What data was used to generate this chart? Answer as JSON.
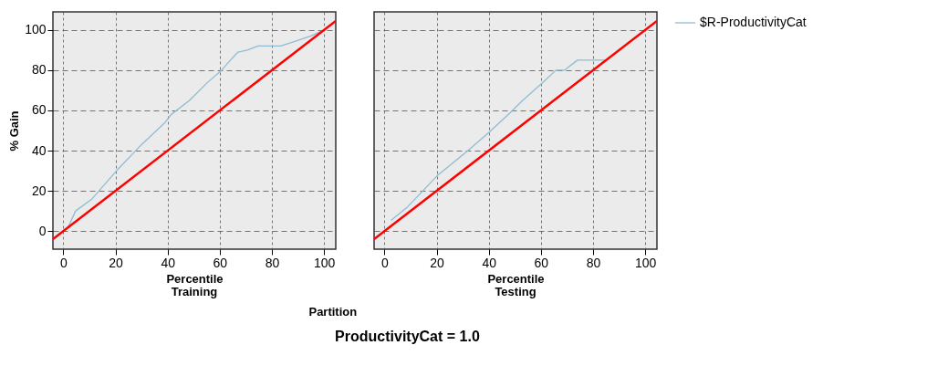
{
  "chart_data": [
    {
      "type": "line",
      "title": "Training",
      "xlabel": "Percentile",
      "ylabel": "% Gain",
      "annotations": [
        "Partition",
        "ProductivityCat = 1.0"
      ],
      "xlim": [
        -4,
        104.5
      ],
      "ylim": [
        -9,
        109
      ],
      "xticks": [
        0,
        20,
        40,
        60,
        80,
        100
      ],
      "yticks": [
        0,
        20,
        40,
        60,
        80,
        100
      ],
      "grid": true,
      "legend": "right",
      "series": [
        {
          "name": "$R-ProductivityCat",
          "color": "#8fbcd4",
          "x": [
            1.8,
            4.7,
            11,
            20.4,
            30,
            39,
            41.4,
            48.4,
            55.4,
            60.7,
            64.8,
            67,
            70.6,
            74.7,
            83.4,
            88,
            95,
            100
          ],
          "values": [
            1.8,
            10,
            16,
            30,
            43,
            54,
            58,
            65,
            74,
            80,
            86,
            89,
            90,
            92,
            92,
            94,
            97,
            100
          ]
        },
        {
          "color": "#ff0000",
          "x": [
            -4,
            104.5
          ],
          "values": [
            -4,
            104.5
          ]
        }
      ]
    },
    {
      "type": "line",
      "title": "Testing",
      "xlabel": "Percentile",
      "xlim": [
        -4,
        104.5
      ],
      "ylim": [
        -9,
        109
      ],
      "xticks": [
        0,
        20,
        40,
        60,
        80,
        100
      ],
      "yticks": [
        0,
        20,
        40,
        60,
        80,
        100
      ],
      "grid": true,
      "legend": "right",
      "tick_labels": "x",
      "series": [
        {
          "name": "$R-ProductivityCat",
          "color": "#8fbcd4",
          "x": [
            2.5,
            8.5,
            20.2,
            32,
            40,
            48.3,
            53,
            60,
            65.8,
            69,
            74,
            84.6
          ],
          "values": [
            5.3,
            11.6,
            27.5,
            40,
            49,
            59,
            65,
            73,
            80,
            80,
            85,
            85
          ]
        },
        {
          "color": "#ff0000",
          "x": [
            -4,
            104.5
          ],
          "values": [
            -4,
            104.5
          ]
        }
      ]
    }
  ]
}
